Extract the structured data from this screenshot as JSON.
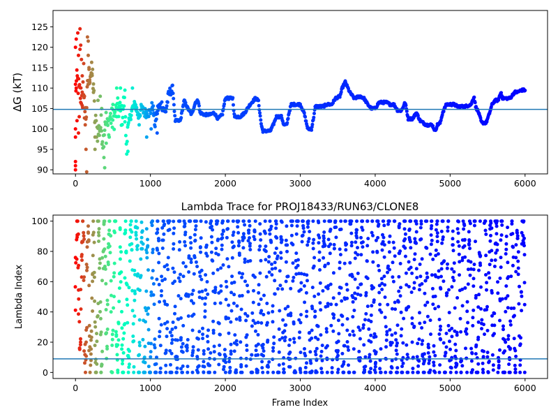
{
  "chart_data": [
    {
      "type": "scatter",
      "title": "",
      "xlabel": "",
      "ylabel": "ΔG (kT)",
      "xlim": [
        -300,
        6300
      ],
      "ylim": [
        89,
        129
      ],
      "xticks": [
        0,
        1000,
        2000,
        3000,
        4000,
        5000,
        6000
      ],
      "yticks": [
        90,
        95,
        100,
        105,
        110,
        115,
        120,
        125
      ],
      "reference_line": 104.8,
      "colormap": "rainbow",
      "grid": false,
      "segments": [
        [
          0,
          110
        ],
        [
          25,
          112
        ],
        [
          50,
          109
        ],
        [
          80,
          108
        ],
        [
          110,
          106
        ],
        [
          140,
          103
        ],
        [
          170,
          112
        ],
        [
          200,
          114
        ],
        [
          230,
          113
        ],
        [
          260,
          102
        ],
        [
          300,
          99
        ],
        [
          340,
          101
        ],
        [
          370,
          97
        ],
        [
          400,
          103
        ],
        [
          430,
          100
        ],
        [
          460,
          103
        ],
        [
          500,
          102
        ],
        [
          540,
          104
        ],
        [
          580,
          105
        ],
        [
          620,
          103
        ],
        [
          650,
          107
        ],
        [
          680,
          96
        ],
        [
          700,
          100
        ],
        [
          730,
          103
        ],
        [
          760,
          105
        ],
        [
          800,
          106
        ],
        [
          840,
          103
        ],
        [
          880,
          105
        ],
        [
          920,
          104
        ],
        [
          960,
          104
        ],
        [
          1000,
          104
        ],
        [
          1030,
          106
        ],
        [
          1060,
          101
        ],
        [
          1100,
          105
        ],
        [
          1150,
          106
        ],
        [
          1200,
          104
        ],
        [
          1240,
          108
        ],
        [
          1270,
          109.5
        ],
        [
          1300,
          109.5
        ],
        [
          1330,
          102
        ],
        [
          1400,
          102
        ],
        [
          1450,
          107
        ],
        [
          1500,
          105
        ],
        [
          1550,
          103.5
        ],
        [
          1600,
          106.5
        ],
        [
          1640,
          107
        ],
        [
          1660,
          104
        ],
        [
          1720,
          103.5
        ],
        [
          1800,
          103.5
        ],
        [
          1850,
          104
        ],
        [
          1900,
          102.5
        ],
        [
          1960,
          103.5
        ],
        [
          2000,
          107.5
        ],
        [
          2100,
          107.5
        ],
        [
          2120,
          103
        ],
        [
          2200,
          103
        ],
        [
          2260,
          104
        ],
        [
          2330,
          106
        ],
        [
          2400,
          107.5
        ],
        [
          2440,
          107
        ],
        [
          2460,
          104
        ],
        [
          2480,
          101
        ],
        [
          2500,
          99.5
        ],
        [
          2600,
          99.5
        ],
        [
          2640,
          101
        ],
        [
          2680,
          103
        ],
        [
          2750,
          103
        ],
        [
          2780,
          101
        ],
        [
          2820,
          101
        ],
        [
          2850,
          104
        ],
        [
          2880,
          106
        ],
        [
          3000,
          106
        ],
        [
          3050,
          104
        ],
        [
          3100,
          100
        ],
        [
          3150,
          100
        ],
        [
          3180,
          103
        ],
        [
          3200,
          105.5
        ],
        [
          3250,
          105.5
        ],
        [
          3300,
          105.5
        ],
        [
          3360,
          106
        ],
        [
          3420,
          106
        ],
        [
          3470,
          107.5
        ],
        [
          3530,
          108
        ],
        [
          3560,
          110
        ],
        [
          3600,
          111.5
        ],
        [
          3660,
          109
        ],
        [
          3720,
          107.5
        ],
        [
          3800,
          108
        ],
        [
          3850,
          107.5
        ],
        [
          3900,
          106
        ],
        [
          3950,
          105
        ],
        [
          4000,
          105
        ],
        [
          4050,
          106.5
        ],
        [
          4150,
          106.5
        ],
        [
          4200,
          106
        ],
        [
          4250,
          106
        ],
        [
          4300,
          104.5
        ],
        [
          4350,
          104.5
        ],
        [
          4400,
          106.5
        ],
        [
          4440,
          102.5
        ],
        [
          4500,
          102.5
        ],
        [
          4550,
          104
        ],
        [
          4600,
          102
        ],
        [
          4680,
          101
        ],
        [
          4760,
          101
        ],
        [
          4800,
          99.5
        ],
        [
          4830,
          101
        ],
        [
          4870,
          101.5
        ],
        [
          4900,
          104
        ],
        [
          4950,
          106
        ],
        [
          5050,
          106
        ],
        [
          5100,
          105.5
        ],
        [
          5200,
          105.5
        ],
        [
          5280,
          106
        ],
        [
          5320,
          108
        ],
        [
          5340,
          105.5
        ],
        [
          5380,
          104
        ],
        [
          5420,
          101.5
        ],
        [
          5480,
          101.5
        ],
        [
          5520,
          103.5
        ],
        [
          5560,
          106
        ],
        [
          5600,
          107
        ],
        [
          5640,
          107
        ],
        [
          5680,
          109
        ],
        [
          5700,
          107.5
        ],
        [
          5800,
          107.5
        ],
        [
          5860,
          109
        ],
        [
          5900,
          109
        ],
        [
          5950,
          109.5
        ],
        [
          6000,
          109.5
        ]
      ],
      "early_points": [
        [
          0,
          120
        ],
        [
          0,
          100
        ],
        [
          0,
          98
        ],
        [
          0,
          92
        ],
        [
          0,
          91
        ],
        [
          0,
          90
        ],
        [
          10,
          122
        ],
        [
          10,
          110
        ],
        [
          20,
          102
        ],
        [
          30,
          123.5
        ],
        [
          40,
          118
        ],
        [
          40,
          99
        ],
        [
          50,
          103
        ],
        [
          60,
          124.5
        ],
        [
          60,
          119.5
        ],
        [
          70,
          120.5
        ],
        [
          70,
          106.5
        ],
        [
          80,
          117
        ],
        [
          90,
          113
        ],
        [
          90,
          109
        ],
        [
          100,
          111.5
        ],
        [
          110,
          116
        ],
        [
          120,
          108
        ],
        [
          130,
          101
        ],
        [
          140,
          95
        ],
        [
          150,
          89.5
        ],
        [
          160,
          122.5
        ],
        [
          170,
          121.5
        ],
        [
          170,
          118
        ],
        [
          180,
          115
        ],
        [
          190,
          112
        ],
        [
          220,
          113.5
        ],
        [
          240,
          111
        ],
        [
          260,
          98
        ],
        [
          260,
          95
        ],
        [
          300,
          107
        ],
        [
          330,
          108
        ],
        [
          350,
          105
        ],
        [
          380,
          93
        ],
        [
          390,
          90.5
        ],
        [
          410,
          96.5
        ],
        [
          450,
          98
        ],
        [
          500,
          106
        ],
        [
          550,
          110
        ],
        [
          600,
          110
        ],
        [
          660,
          109.5
        ],
        [
          700,
          94.5
        ],
        [
          760,
          110
        ],
        [
          850,
          101
        ],
        [
          950,
          98
        ],
        [
          1010,
          100
        ],
        [
          1090,
          99
        ]
      ]
    },
    {
      "type": "scatter",
      "title": "Lambda Trace for PROJ18433/RUN63/CLONE8",
      "xlabel": "Frame Index",
      "ylabel": "Lambda Index",
      "xlim": [
        -300,
        6300
      ],
      "ylim": [
        -4,
        104
      ],
      "xticks": [
        0,
        1000,
        2000,
        3000,
        4000,
        5000,
        6000
      ],
      "yticks": [
        0,
        20,
        40,
        60,
        80,
        100
      ],
      "reference_line": 9,
      "colormap": "rainbow",
      "grid": false,
      "lambda_range": [
        0,
        100
      ],
      "frame_count": 6000
    }
  ]
}
